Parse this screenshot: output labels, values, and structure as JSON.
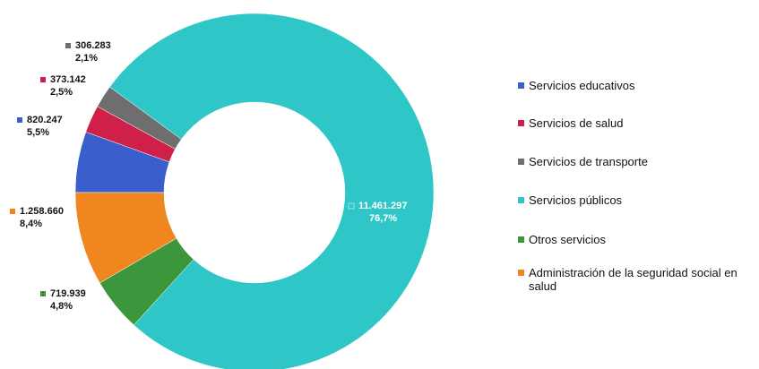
{
  "chart_data": {
    "type": "donut",
    "series": [
      {
        "name": "Servicios educativos",
        "color": "#3a5fcd",
        "values": [
          820247
        ],
        "value_labels": [
          "820.247"
        ],
        "percents": [
          5.5
        ],
        "percent_labels": [
          "5,5%"
        ]
      },
      {
        "name": "Servicios de salud",
        "color": "#d0204a",
        "values": [
          373142
        ],
        "value_labels": [
          "373.142"
        ],
        "percents": [
          2.5
        ],
        "percent_labels": [
          "2,5%"
        ]
      },
      {
        "name": "Servicios de transporte",
        "color": "#6e6e6e",
        "values": [
          306283
        ],
        "value_labels": [
          "306.283"
        ],
        "percents": [
          2.1
        ],
        "percent_labels": [
          "2,1%"
        ]
      },
      {
        "name": "Servicios públicos",
        "color": "#2ec6c6",
        "values": [
          11461297
        ],
        "value_labels": [
          "11.461.297"
        ],
        "percents": [
          76.7
        ],
        "percent_labels": [
          "76,7%"
        ]
      },
      {
        "name": "Otros servicios",
        "color": "#3c963c",
        "values": [
          719939
        ],
        "value_labels": [
          "719.939"
        ],
        "percents": [
          4.8
        ],
        "percent_labels": [
          "4,8%"
        ]
      },
      {
        "name": "Administración de la seguridad social en salud",
        "color": "#f0861e",
        "values": [
          1258660
        ],
        "value_labels": [
          "1.258.660"
        ],
        "percents": [
          8.4
        ],
        "percent_labels": [
          "8,4%"
        ]
      }
    ]
  }
}
